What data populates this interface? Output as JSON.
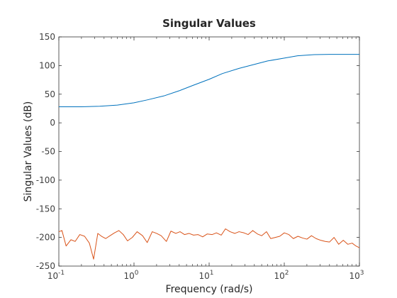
{
  "chart_data": {
    "type": "line",
    "title": "Singular Values",
    "xlabel": "Frequency (rad/s)",
    "ylabel": "Singular Values (dB)",
    "xscale": "log",
    "xlim": [
      0.1,
      1000
    ],
    "ylim": [
      -250,
      150
    ],
    "grid": false,
    "legend": "none",
    "x_ticks": [
      {
        "base": "10",
        "exp": "-1",
        "value": 0.1
      },
      {
        "base": "10",
        "exp": "0",
        "value": 1
      },
      {
        "base": "10",
        "exp": "1",
        "value": 10
      },
      {
        "base": "10",
        "exp": "2",
        "value": 100
      },
      {
        "base": "10",
        "exp": "3",
        "value": 1000
      }
    ],
    "y_ticks": [
      "150",
      "100",
      "50",
      "0",
      "-50",
      "-100",
      "-150",
      "-200",
      "-250"
    ],
    "series": [
      {
        "color": "#0072BD",
        "x": [
          0.1,
          0.2,
          0.35,
          0.6,
          1,
          1.5,
          2.5,
          4,
          6,
          10,
          15,
          25,
          40,
          60,
          100,
          150,
          250,
          400,
          1000
        ],
        "y": [
          28,
          28,
          29,
          31,
          35,
          40,
          47,
          56,
          65,
          76,
          86,
          95,
          102,
          108,
          113,
          117,
          119,
          119.5,
          119.5
        ]
      },
      {
        "color": "#D95319",
        "x": [
          0.1,
          0.11,
          0.125,
          0.145,
          0.165,
          0.19,
          0.22,
          0.255,
          0.29,
          0.33,
          0.37,
          0.42,
          0.48,
          0.55,
          0.63,
          0.72,
          0.82,
          0.95,
          1.1,
          1.3,
          1.5,
          1.75,
          2,
          2.3,
          2.7,
          3.1,
          3.6,
          4.1,
          4.7,
          5.4,
          6.2,
          7.1,
          8.2,
          9.4,
          11,
          12.5,
          14.5,
          16.5,
          19,
          22,
          25,
          29,
          33,
          38,
          44,
          50,
          58,
          66,
          76,
          87,
          100,
          115,
          132,
          152,
          175,
          200,
          230,
          265,
          305,
          350,
          400,
          460,
          530,
          610,
          700,
          800,
          900,
          1000
        ],
        "y": [
          -190,
          -188,
          -215,
          -204,
          -207,
          -195,
          -198,
          -210,
          -238,
          -193,
          -198,
          -202,
          -197,
          -192,
          -188,
          -195,
          -206,
          -200,
          -190,
          -197,
          -209,
          -190,
          -193,
          -197,
          -207,
          -189,
          -193,
          -190,
          -195,
          -193,
          -196,
          -195,
          -199,
          -194,
          -195,
          -192,
          -196,
          -185,
          -190,
          -193,
          -190,
          -192,
          -195,
          -188,
          -194,
          -197,
          -190,
          -202,
          -200,
          -198,
          -192,
          -195,
          -202,
          -198,
          -201,
          -203,
          -197,
          -202,
          -205,
          -207,
          -208,
          -200,
          -212,
          -205,
          -212,
          -210,
          -215,
          -218
        ]
      }
    ]
  }
}
